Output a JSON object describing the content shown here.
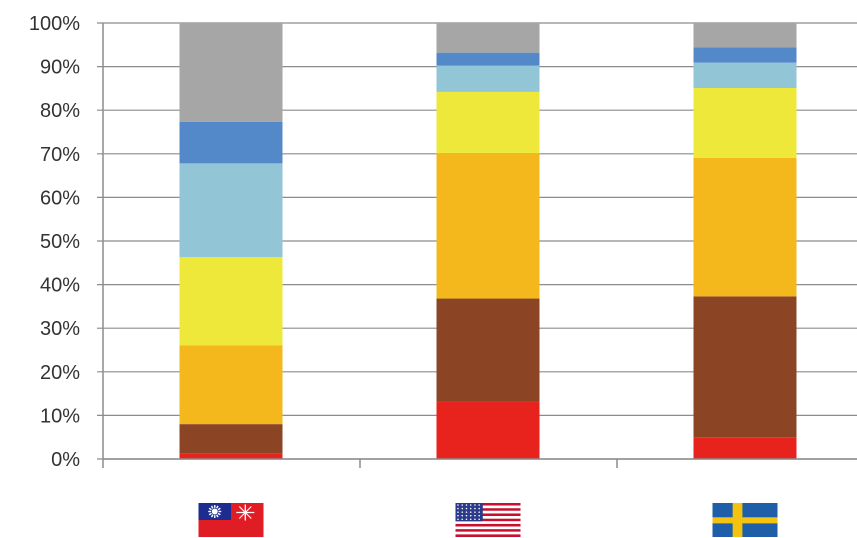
{
  "chart_data": {
    "type": "bar",
    "stacked": true,
    "categories": [
      "Taiwan",
      "United States",
      "Sweden"
    ],
    "category_icons": [
      "taiwan-flag-icon",
      "usa-flag-icon",
      "sweden-flag-icon"
    ],
    "series": [
      {
        "color": "#e8231d",
        "values": [
          1.2,
          13.2,
          5.0
        ]
      },
      {
        "color": "#8b4524",
        "values": [
          6.8,
          23.6,
          32.3
        ]
      },
      {
        "color": "#f4b81c",
        "values": [
          18.1,
          33.4,
          31.8
        ]
      },
      {
        "color": "#eee83a",
        "values": [
          20.2,
          14.0,
          16.0
        ]
      },
      {
        "color": "#92c5d6",
        "values": [
          21.5,
          6.0,
          5.8
        ]
      },
      {
        "color": "#5388c9",
        "values": [
          9.5,
          3.0,
          3.5
        ]
      },
      {
        "color": "#a6a6a6",
        "values": [
          22.7,
          6.8,
          5.6
        ]
      }
    ],
    "ylim": [
      0,
      100
    ],
    "yticks": [
      "0%",
      "10%",
      "20%",
      "30%",
      "40%",
      "50%",
      "60%",
      "70%",
      "80%",
      "90%",
      "100%"
    ],
    "grid": true,
    "legend": "none"
  }
}
